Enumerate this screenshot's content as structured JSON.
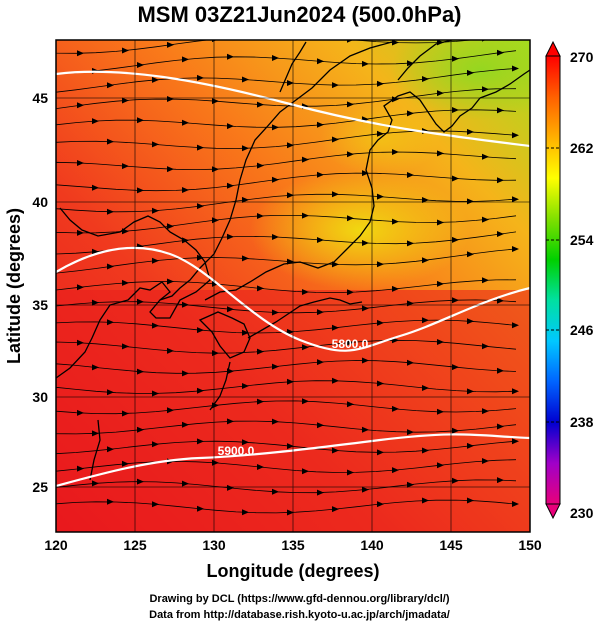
{
  "title": "MSM 03Z21Jun2024 (500.0hPa)",
  "x_axis": {
    "label": "Longitude (degrees)",
    "ticks": [
      "120",
      "125",
      "130",
      "135",
      "140",
      "145",
      "150"
    ],
    "range": [
      120,
      150
    ]
  },
  "y_axis": {
    "label": "Latitude  (degrees)",
    "ticks": [
      "25",
      "30",
      "35",
      "40",
      "45"
    ],
    "range": [
      22.4,
      47.6
    ]
  },
  "colorbar": {
    "labels": [
      "270",
      "262",
      "254",
      "246",
      "238",
      "230"
    ],
    "range": [
      230,
      270
    ],
    "colors": [
      "#e8007a",
      "#a000c8",
      "#0000d0",
      "#0064ff",
      "#00c8ff",
      "#00e0a0",
      "#00d000",
      "#80e000",
      "#ffff00",
      "#ffb000",
      "#ff6000",
      "#ff0000"
    ]
  },
  "contours": [
    {
      "label": "5800.0",
      "lat": 33.5
    },
    {
      "label": "5900.0",
      "lat": 27.2
    }
  ],
  "credits": [
    "Drawing by DCL (https://www.gfd-dennou.org/library/dcl/)",
    "Data from http://database.rish.kyoto-u.ac.jp/arch/jmadata/"
  ]
}
